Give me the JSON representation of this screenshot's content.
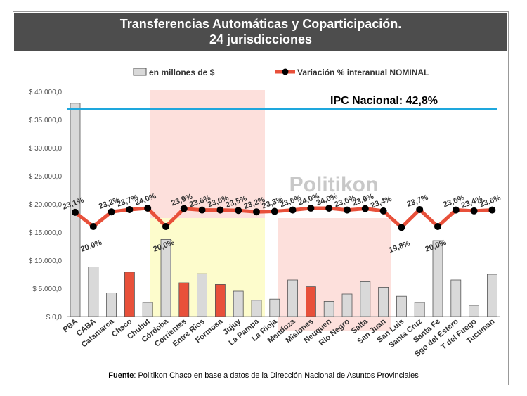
{
  "chart_data": {
    "type": "bar+line",
    "title": "Transferencias Automáticas y Coparticipación.",
    "subtitle": "24 jurisdicciones",
    "categories": [
      "PBA",
      "CABA",
      "Catamarca",
      "Chaco",
      "Chubut",
      "Córdoba",
      "Corrientes",
      "Entre Rios",
      "Formosa",
      "Jujuy",
      "La Pampa",
      "La Rioja",
      "Mendoza",
      "Misiones",
      "Neuquen",
      "Rio Negro",
      "Salta",
      "San Juan",
      "San Luis",
      "Santa Cruz",
      "Santa Fe",
      "Sgo del Estero",
      "T del Fuego",
      "Tucuman"
    ],
    "series": [
      {
        "name": "en millones de $",
        "type": "bar",
        "values": [
          37900,
          8800,
          4200,
          7900,
          2500,
          13700,
          6000,
          7600,
          5700,
          4500,
          2900,
          3100,
          6500,
          5300,
          2700,
          4000,
          6200,
          5200,
          3600,
          2500,
          13500,
          6500,
          2000,
          7500
        ],
        "highlighted": [
          "Chaco",
          "Corrientes",
          "Formosa",
          "Misiones"
        ],
        "color": "#d9d9d9",
        "highlight_color": "#e8503a"
      },
      {
        "name": "Variación % interanual NOMINAL",
        "type": "line",
        "values": [
          23.1,
          20.0,
          23.2,
          23.7,
          24.0,
          20.0,
          23.9,
          23.6,
          23.6,
          23.5,
          23.2,
          23.3,
          23.6,
          24.0,
          24.0,
          23.6,
          23.9,
          23.4,
          19.8,
          23.7,
          20.0,
          23.6,
          23.4,
          23.6
        ],
        "labels": [
          "23,1%",
          "20,0%",
          "23,2%",
          "23,7%",
          "24,0%",
          "20,0%",
          "23,9%",
          "23,6%",
          "23,6%",
          "23,5%",
          "23,2%",
          "23,3%",
          "23,6%",
          "24,0%",
          "24,0%",
          "23,6%",
          "23,9%",
          "23,4%",
          "19,8%",
          "23,7%",
          "20,0%",
          "23,6%",
          "23,4%",
          "23,6%"
        ],
        "color": "#e8503a"
      }
    ],
    "yticks": [
      "$ 0,0",
      "$ 5.000,0",
      "$ 10.000,0",
      "$ 15.000,0",
      "$ 20.000,0",
      "$ 25.000,0",
      "$ 30.000,0",
      "$ 35.000,0",
      "$ 40.000,0"
    ],
    "ylim": [
      0,
      40000
    ],
    "reference_line": {
      "label": "IPC Nacional: 42,8%",
      "color": "#1ea7dd"
    },
    "watermark": "Politikon",
    "legend_placement": "top"
  },
  "source": {
    "bold": "Fuente",
    "text": ": Politikon Chaco en base a datos de la Dirección Nacional de Asuntos Provinciales"
  }
}
